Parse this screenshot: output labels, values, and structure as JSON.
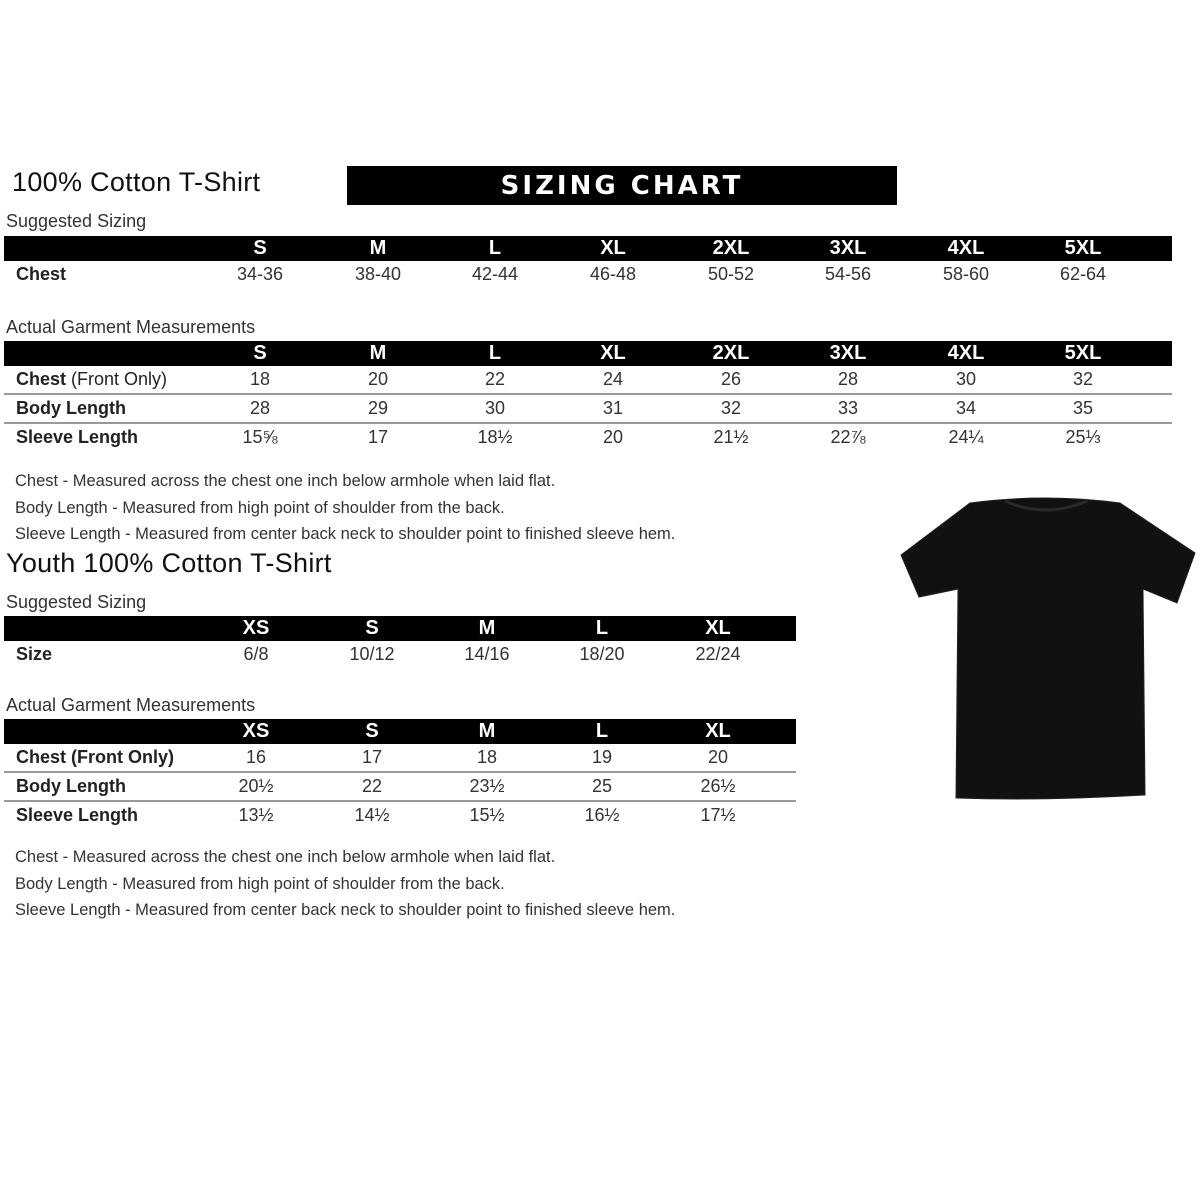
{
  "adult": {
    "title": "100% Cotton T-Shirt",
    "banner": "SIZING CHART",
    "suggested_label": "Suggested Sizing",
    "sizes": [
      "S",
      "M",
      "L",
      "XL",
      "2XL",
      "3XL",
      "4XL",
      "5XL"
    ],
    "suggested_rows": [
      {
        "label": "Chest",
        "values": [
          "34-36",
          "38-40",
          "42-44",
          "46-48",
          "50-52",
          "54-56",
          "58-60",
          "62-64"
        ]
      }
    ],
    "actual_label": "Actual Garment Measurements",
    "actual_rows": [
      {
        "label": "Chest",
        "label_extra": " (Front Only)",
        "values": [
          "18",
          "20",
          "22",
          "24",
          "26",
          "28",
          "30",
          "32"
        ]
      },
      {
        "label": "Body Length",
        "values": [
          "28",
          "29",
          "30",
          "31",
          "32",
          "33",
          "34",
          "35"
        ]
      },
      {
        "label": "Sleeve Length",
        "values": [
          "15⅝",
          "17",
          "18½",
          "20",
          "21½",
          "22⅞",
          "24¼",
          "25⅓"
        ]
      }
    ],
    "notes": [
      "Chest - Measured across the chest one inch below armhole when laid flat.",
      "Body Length - Measured from high point of shoulder from the back.",
      "Sleeve Length - Measured from center back neck to shoulder point to finished sleeve hem."
    ]
  },
  "youth": {
    "title": "Youth 100% Cotton T-Shirt",
    "suggested_label": "Suggested Sizing",
    "sizes": [
      "XS",
      "S",
      "M",
      "L",
      "XL"
    ],
    "suggested_rows": [
      {
        "label": "Size",
        "values": [
          "6/8",
          "10/12",
          "14/16",
          "18/20",
          "22/24"
        ]
      }
    ],
    "actual_label": "Actual Garment Measurements",
    "actual_rows": [
      {
        "label": "Chest (Front Only)",
        "values": [
          "16",
          "17",
          "18",
          "19",
          "20"
        ]
      },
      {
        "label": "Body Length",
        "values": [
          "20½",
          "22",
          "23½",
          "25",
          "26½"
        ]
      },
      {
        "label": "Sleeve Length",
        "values": [
          "13½",
          "14½",
          "15½",
          "16½",
          "17½"
        ]
      }
    ],
    "notes": [
      "Chest - Measured across the chest one inch below armhole when laid flat.",
      "Body Length - Measured from high point of shoulder from the back.",
      "Sleeve Length - Measured from center back neck to shoulder point to finished sleeve hem."
    ]
  },
  "image": {
    "icon": "black-tshirt-icon",
    "color": "#111111"
  }
}
